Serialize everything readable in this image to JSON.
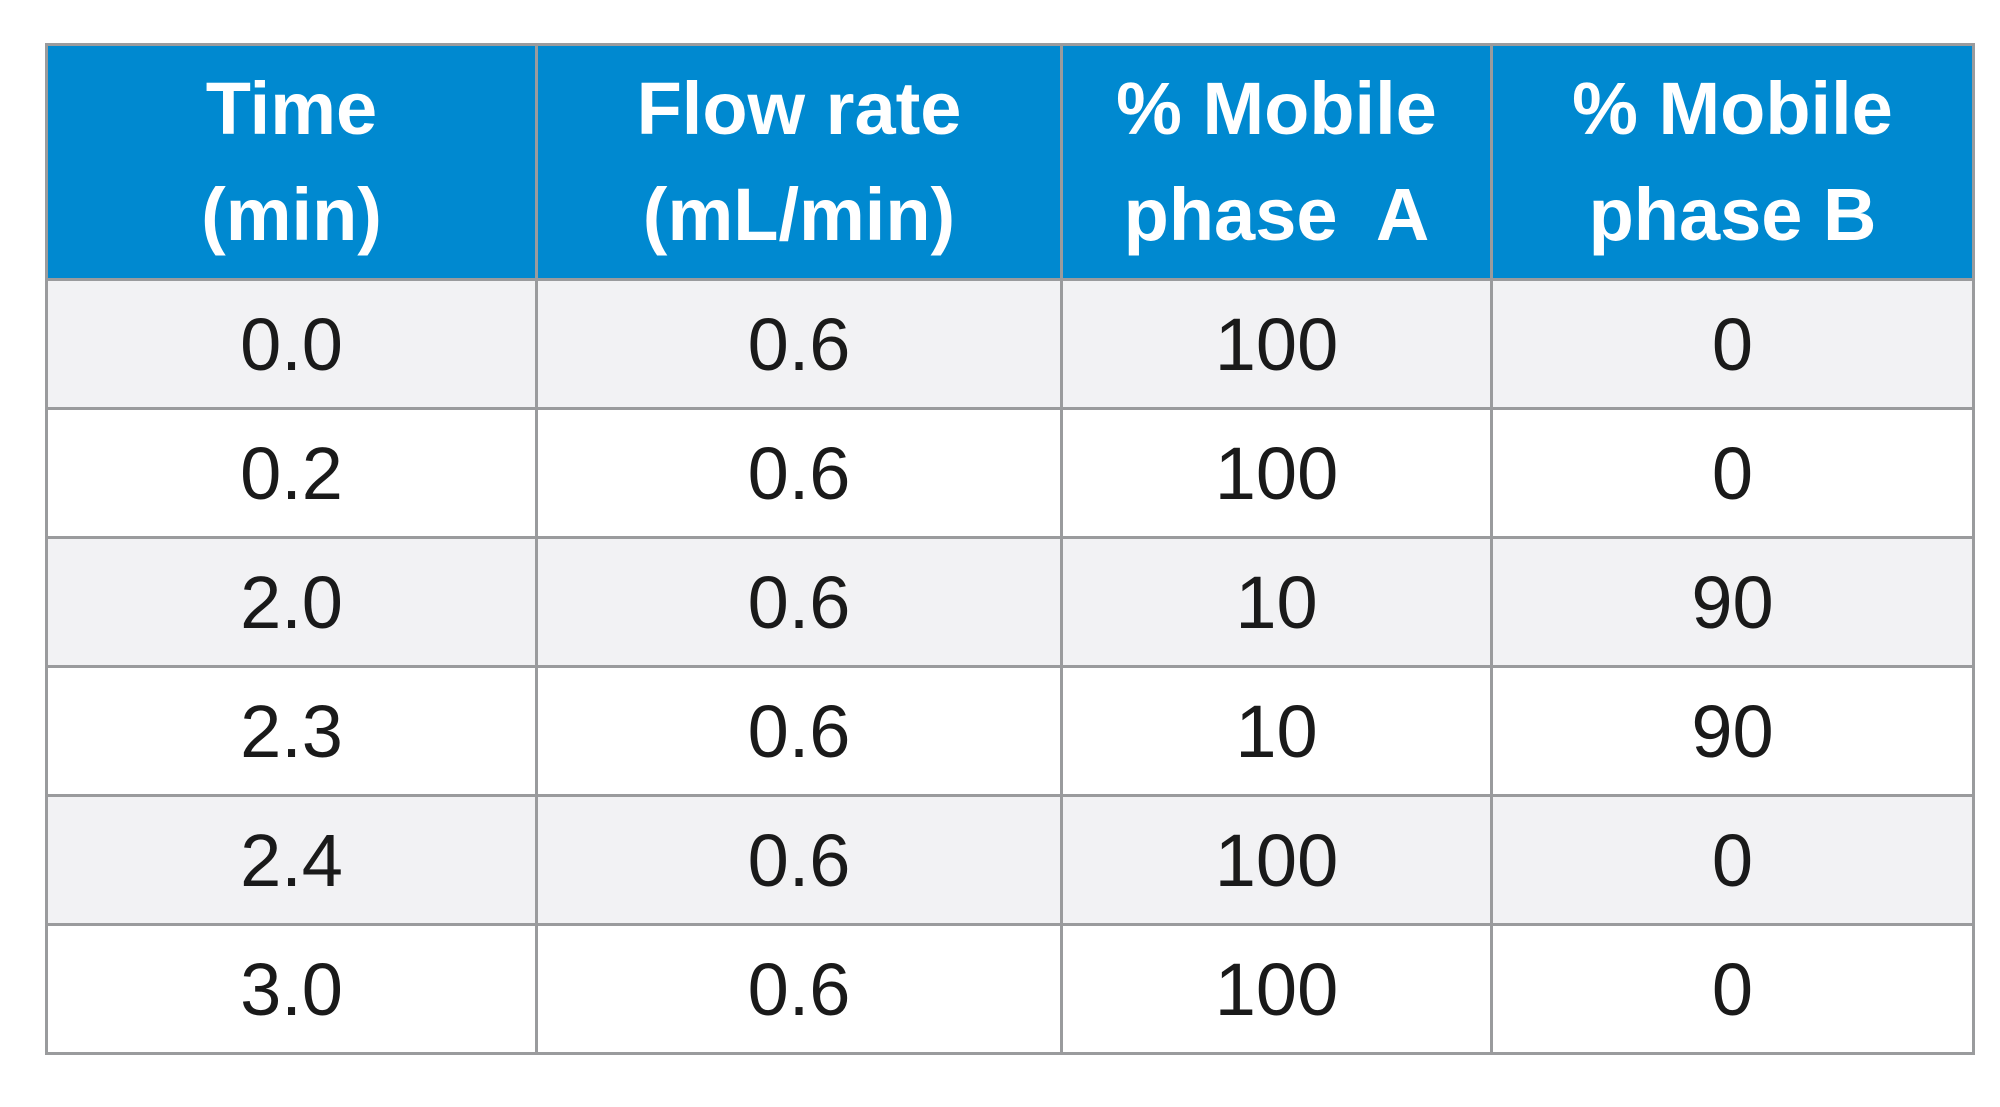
{
  "table": {
    "headers": [
      [
        "Time",
        "(min)"
      ],
      [
        "Flow rate",
        "(mL/min)"
      ],
      [
        "% Mobile",
        "phase  A"
      ],
      [
        "% Mobile",
        "phase B"
      ]
    ],
    "rows": [
      [
        "0.0",
        "0.6",
        "100",
        "0"
      ],
      [
        "0.2",
        "0.6",
        "100",
        "0"
      ],
      [
        "2.0",
        "0.6",
        "10",
        "90"
      ],
      [
        "2.3",
        "0.6",
        "10",
        "90"
      ],
      [
        "2.4",
        "0.6",
        "100",
        "0"
      ],
      [
        "3.0",
        "0.6",
        "100",
        "0"
      ]
    ]
  },
  "colors": {
    "header_bg": "#0089d0",
    "header_text": "#ffffff",
    "row_alt_bg": "#f2f2f4",
    "grid": "#9a9b9d"
  }
}
